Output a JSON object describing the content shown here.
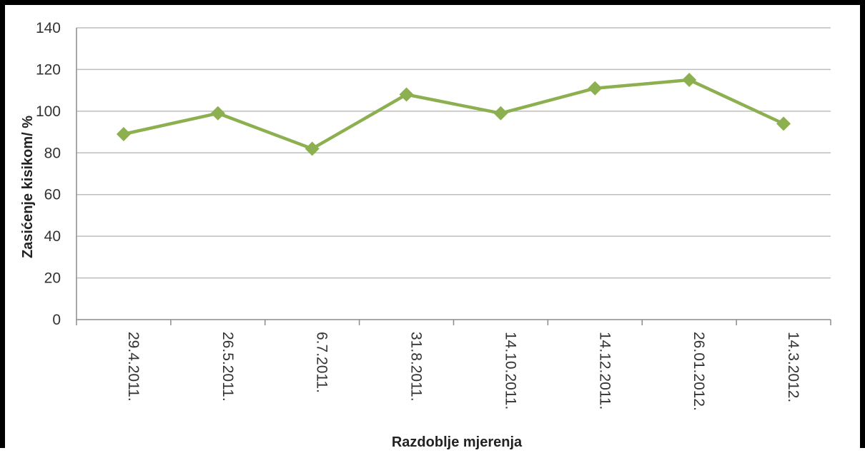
{
  "chart_data": {
    "type": "line",
    "categories": [
      "29.4.2011.",
      "26.5.2011.",
      "6.7.2011.",
      "31.8.2011.",
      "14.10.2011.",
      "14.12.2011.",
      "26.01.2012.",
      "14.3.2012."
    ],
    "series": [
      {
        "values": [
          89,
          99,
          82,
          108,
          99,
          111,
          115,
          94
        ]
      }
    ],
    "xlabel": "Razdoblje mjerenja",
    "ylabel": "Zasićenje kisikom/ %",
    "ylim": [
      0,
      140
    ],
    "yticks": [
      "0",
      "20",
      "40",
      "60",
      "80",
      "100",
      "120",
      "140"
    ],
    "grid": true,
    "legend": "none",
    "colors": {
      "series": "#8cb050",
      "grid": "#bdbdbd",
      "axis": "#8c8c8c",
      "frame": "#000000"
    }
  }
}
